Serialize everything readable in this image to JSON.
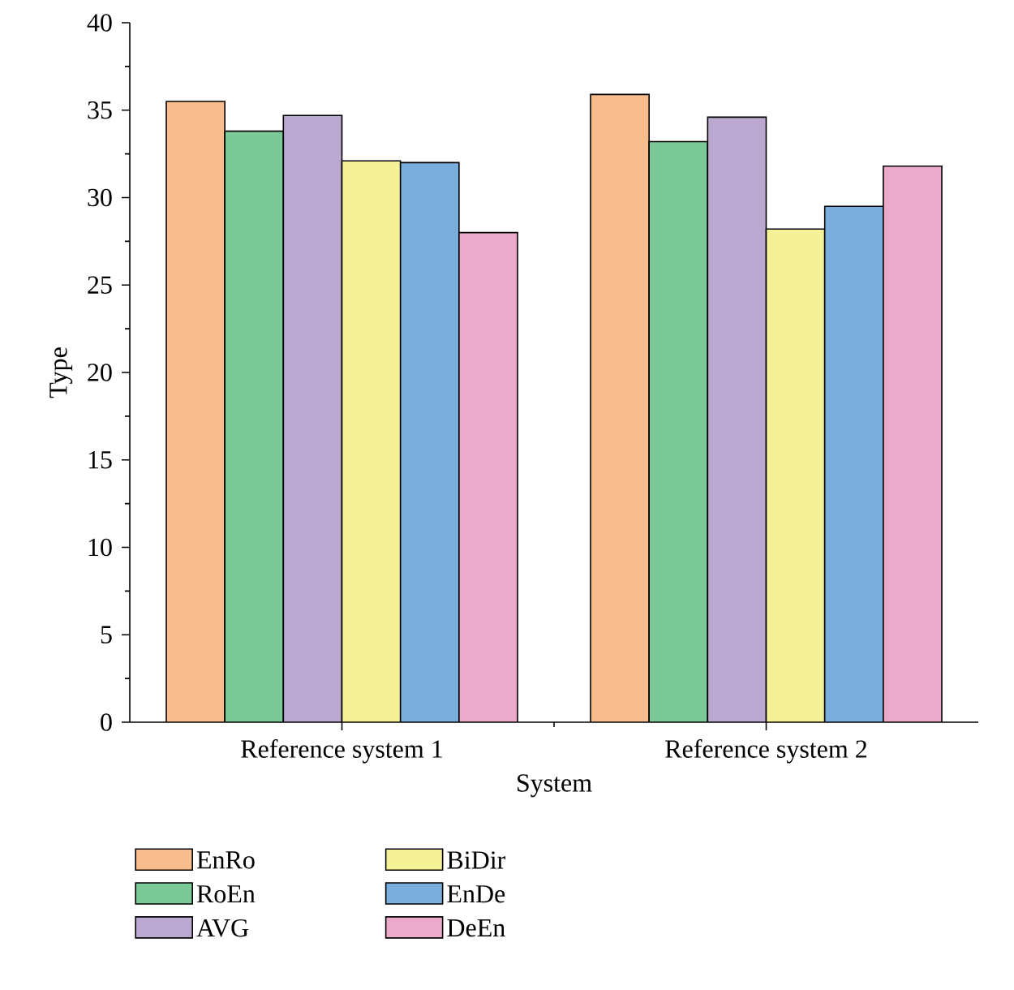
{
  "chart_data": {
    "type": "bar",
    "xlabel": "System",
    "ylabel": "Type",
    "categories": [
      "Reference system 1",
      "Reference system 2"
    ],
    "ylim": [
      0,
      40
    ],
    "yticks": [
      0,
      5,
      10,
      15,
      20,
      25,
      30,
      35,
      40
    ],
    "legend": "bottom",
    "grid": false,
    "series": [
      {
        "name": "EnRo",
        "color": "#f9bc8c",
        "values": [
          35.5,
          35.9
        ]
      },
      {
        "name": "RoEn",
        "color": "#7cc998",
        "values": [
          33.8,
          33.2
        ]
      },
      {
        "name": "AVG",
        "color": "#bba8d1",
        "values": [
          34.7,
          34.6
        ]
      },
      {
        "name": "BiDir",
        "color": "#f5f197",
        "values": [
          32.1,
          28.2
        ]
      },
      {
        "name": "EnDe",
        "color": "#7aaedc",
        "values": [
          32.0,
          29.5
        ]
      },
      {
        "name": "DeEn",
        "color": "#ecaacb",
        "values": [
          28.0,
          31.8
        ]
      }
    ]
  }
}
